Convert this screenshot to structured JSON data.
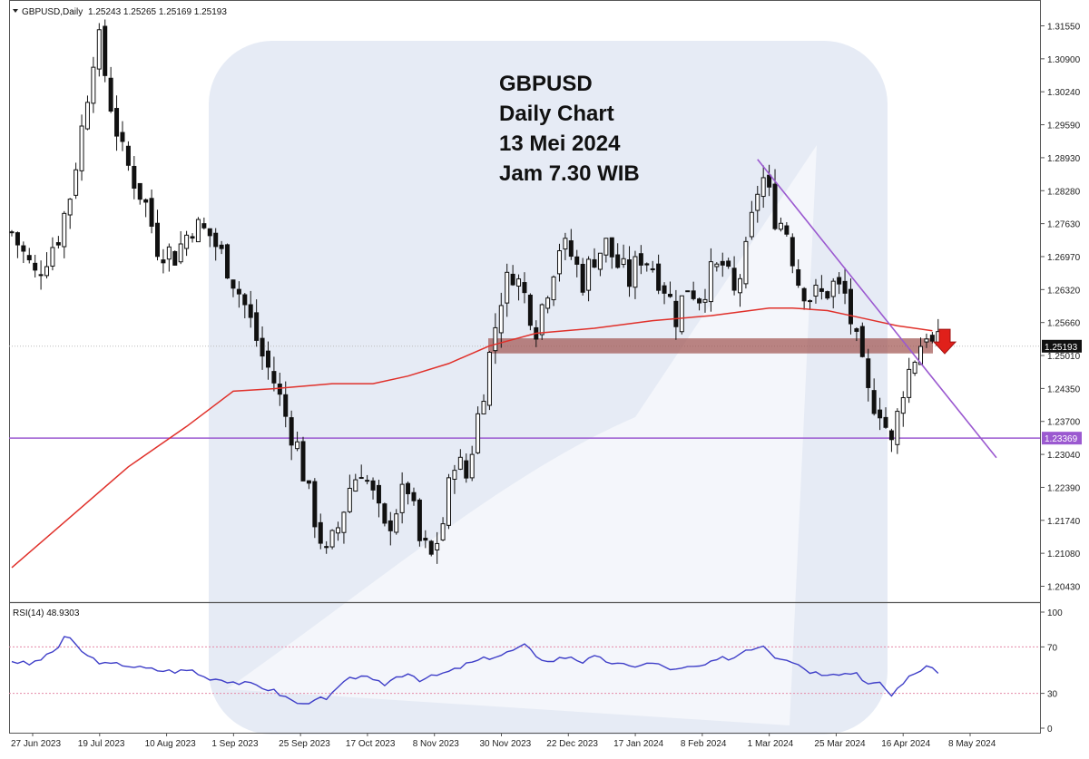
{
  "header": {
    "symbol_label": "GBPUSD,Daily",
    "ohlc": "1.25243 1.25265 1.25169 1.25193"
  },
  "annotation": {
    "line1": "GBPUSD",
    "line2": "Daily Chart",
    "line3": "13 Mei 2024",
    "line4": "Jam 7.30 WIB"
  },
  "colors": {
    "ma_line": "#e0302a",
    "trend_line": "#9b59d0",
    "support_line": "#9b59d0",
    "resistance_zone": "#a0524f",
    "rsi_line": "#3e3ec8",
    "rsi_levels": "#e58aa8",
    "arrow": "#e0201a",
    "watermark": "#e6ebf5"
  },
  "chart_data": [
    {
      "type": "candlestick",
      "price_ticks": [
        "1.31550",
        "1.30900",
        "1.30240",
        "1.29590",
        "1.28930",
        "1.28280",
        "1.27630",
        "1.26970",
        "1.26320",
        "1.25660",
        "1.25010",
        "1.24350",
        "1.23700",
        "1.23040",
        "1.22390",
        "1.21740",
        "1.21080",
        "1.20430"
      ],
      "current_price_label": "1.25193",
      "support_label": "1.23369",
      "support_level": 1.23369,
      "resistance_zone": [
        1.2505,
        1.2535
      ],
      "date_ticks": [
        "27 Jun 2023",
        "19 Jul 2023",
        "10 Aug 2023",
        "1 Sep 2023",
        "25 Sep 2023",
        "17 Oct 2023",
        "8 Nov 2023",
        "30 Nov 2023",
        "22 Dec 2023",
        "17 Jan 2024",
        "8 Feb 2024",
        "1 Mar 2024",
        "25 Mar 2024",
        "16 Apr 2024",
        "8 May 2024"
      ],
      "close_path": [
        [
          0,
          1.2745
        ],
        [
          4,
          1.266
        ],
        [
          6,
          1.27
        ],
        [
          8,
          1.274
        ],
        [
          10,
          1.282
        ],
        [
          12,
          1.295
        ],
        [
          14,
          1.31
        ],
        [
          15,
          1.312
        ],
        [
          17,
          1.3
        ],
        [
          19,
          1.29
        ],
        [
          21,
          1.285
        ],
        [
          23,
          1.28
        ],
        [
          25,
          1.272
        ],
        [
          28,
          1.27
        ],
        [
          31,
          1.276
        ],
        [
          34,
          1.274
        ],
        [
          37,
          1.268
        ],
        [
          40,
          1.26
        ],
        [
          43,
          1.25
        ],
        [
          45,
          1.245
        ],
        [
          47,
          1.238
        ],
        [
          49,
          1.232
        ],
        [
          51,
          1.222
        ],
        [
          53,
          1.214
        ],
        [
          54,
          1.21
        ],
        [
          56,
          1.216
        ],
        [
          58,
          1.224
        ],
        [
          60,
          1.228
        ],
        [
          62,
          1.222
        ],
        [
          64,
          1.215
        ],
        [
          66,
          1.22
        ],
        [
          68,
          1.224
        ],
        [
          70,
          1.213
        ],
        [
          72,
          1.21
        ],
        [
          74,
          1.217
        ],
        [
          76,
          1.23
        ],
        [
          78,
          1.226
        ],
        [
          80,
          1.238
        ],
        [
          82,
          1.25
        ],
        [
          84,
          1.262
        ],
        [
          86,
          1.267
        ],
        [
          88,
          1.262
        ],
        [
          90,
          1.256
        ],
        [
          92,
          1.264
        ],
        [
          94,
          1.272
        ],
        [
          96,
          1.27
        ],
        [
          98,
          1.265
        ],
        [
          100,
          1.27
        ],
        [
          102,
          1.272
        ],
        [
          104,
          1.268
        ],
        [
          106,
          1.265
        ],
        [
          108,
          1.27
        ],
        [
          110,
          1.268
        ],
        [
          112,
          1.264
        ],
        [
          114,
          1.258
        ],
        [
          116,
          1.264
        ],
        [
          118,
          1.262
        ],
        [
          120,
          1.266
        ],
        [
          122,
          1.268
        ],
        [
          124,
          1.262
        ],
        [
          126,
          1.27
        ],
        [
          128,
          1.283
        ],
        [
          129,
          1.285
        ],
        [
          131,
          1.278
        ],
        [
          133,
          1.275
        ],
        [
          135,
          1.265
        ],
        [
          137,
          1.262
        ],
        [
          139,
          1.262
        ],
        [
          141,
          1.264
        ],
        [
          143,
          1.262
        ],
        [
          145,
          1.252
        ],
        [
          147,
          1.242
        ],
        [
          149,
          1.24
        ],
        [
          151,
          1.232
        ],
        [
          153,
          1.244
        ],
        [
          155,
          1.25
        ],
        [
          157,
          1.255
        ],
        [
          158,
          1.252
        ],
        [
          159,
          1.252
        ]
      ],
      "ma_path": [
        [
          0,
          1.208
        ],
        [
          10,
          1.218
        ],
        [
          20,
          1.228
        ],
        [
          30,
          1.236
        ],
        [
          38,
          1.243
        ],
        [
          45,
          1.2435
        ],
        [
          55,
          1.2445
        ],
        [
          62,
          1.2445
        ],
        [
          68,
          1.246
        ],
        [
          75,
          1.2485
        ],
        [
          82,
          1.252
        ],
        [
          90,
          1.2545
        ],
        [
          100,
          1.2555
        ],
        [
          110,
          1.257
        ],
        [
          120,
          1.258
        ],
        [
          130,
          1.2595
        ],
        [
          134,
          1.2595
        ],
        [
          140,
          1.259
        ],
        [
          146,
          1.2575
        ],
        [
          152,
          1.256
        ],
        [
          158,
          1.255
        ]
      ],
      "trendline": [
        [
          128,
          1.289
        ],
        [
          169,
          1.2298
        ]
      ],
      "visible_bars": 159
    },
    {
      "type": "line",
      "label": "RSI(14) 48.9303",
      "y_ticks": [
        "100",
        "70",
        "30",
        "0"
      ],
      "levels": [
        70,
        30
      ],
      "ylim": [
        0,
        100
      ],
      "values": [
        [
          0,
          58
        ],
        [
          3,
          55
        ],
        [
          6,
          62
        ],
        [
          8,
          70
        ],
        [
          9,
          79
        ],
        [
          10,
          76
        ],
        [
          13,
          62
        ],
        [
          16,
          55
        ],
        [
          19,
          55
        ],
        [
          22,
          52
        ],
        [
          25,
          50
        ],
        [
          28,
          49
        ],
        [
          31,
          50
        ],
        [
          33,
          44
        ],
        [
          36,
          42
        ],
        [
          39,
          39
        ],
        [
          42,
          37
        ],
        [
          45,
          32
        ],
        [
          48,
          24
        ],
        [
          50,
          20
        ],
        [
          52,
          26
        ],
        [
          54,
          24
        ],
        [
          56,
          35
        ],
        [
          58,
          42
        ],
        [
          60,
          46
        ],
        [
          62,
          40
        ],
        [
          64,
          38
        ],
        [
          66,
          44
        ],
        [
          68,
          48
        ],
        [
          70,
          42
        ],
        [
          72,
          44
        ],
        [
          74,
          47
        ],
        [
          76,
          50
        ],
        [
          78,
          55
        ],
        [
          80,
          58
        ],
        [
          82,
          61
        ],
        [
          84,
          63
        ],
        [
          86,
          67
        ],
        [
          88,
          71
        ],
        [
          90,
          63
        ],
        [
          92,
          57
        ],
        [
          94,
          60
        ],
        [
          96,
          62
        ],
        [
          98,
          57
        ],
        [
          100,
          61
        ],
        [
          102,
          58
        ],
        [
          104,
          55
        ],
        [
          106,
          53
        ],
        [
          108,
          55
        ],
        [
          110,
          56
        ],
        [
          112,
          53
        ],
        [
          114,
          50
        ],
        [
          116,
          52
        ],
        [
          118,
          53
        ],
        [
          120,
          56
        ],
        [
          122,
          60
        ],
        [
          124,
          61
        ],
        [
          126,
          68
        ],
        [
          128,
          70
        ],
        [
          129,
          72
        ],
        [
          131,
          62
        ],
        [
          133,
          60
        ],
        [
          135,
          55
        ],
        [
          137,
          49
        ],
        [
          139,
          47
        ],
        [
          141,
          48
        ],
        [
          143,
          47
        ],
        [
          145,
          48
        ],
        [
          147,
          38
        ],
        [
          149,
          38
        ],
        [
          150,
          34
        ],
        [
          151,
          28
        ],
        [
          153,
          40
        ],
        [
          155,
          47
        ],
        [
          157,
          54
        ],
        [
          158,
          50
        ],
        [
          159,
          49
        ]
      ]
    }
  ]
}
